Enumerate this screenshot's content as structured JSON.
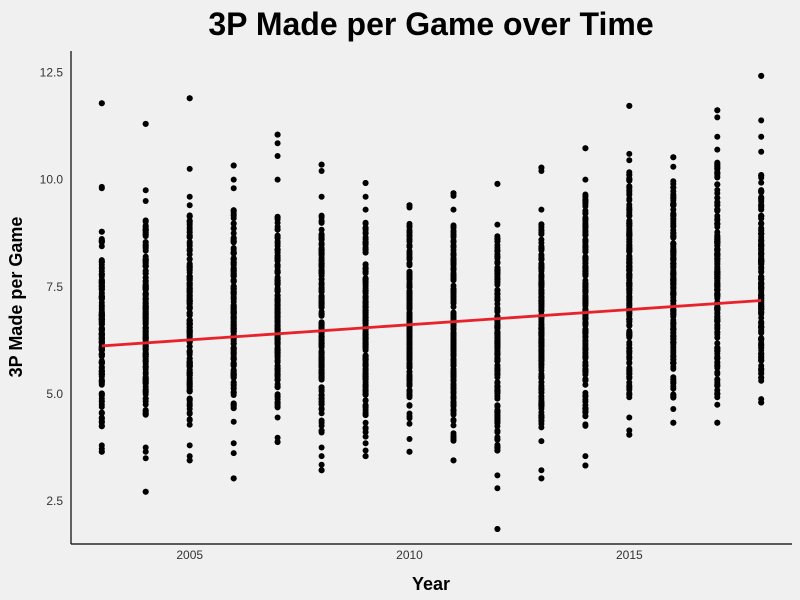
{
  "chart_data": {
    "type": "scatter",
    "title": "3P Made per Game over Time",
    "xlabel": "Year",
    "ylabel": "3P Made per Game",
    "xlim": [
      2002.3,
      2018.7
    ],
    "ylim": [
      1.5,
      13.0
    ],
    "x_ticks": [
      2005,
      2010,
      2015
    ],
    "y_ticks": [
      2.5,
      5.0,
      7.5,
      10.0,
      12.5
    ],
    "x_tick_labels": [
      "2005",
      "2010",
      "2015"
    ],
    "y_tick_labels": [
      "2.5",
      "5.0",
      "7.5",
      "10.0",
      "12.5"
    ],
    "grid": false,
    "colors": {
      "points": "#000000",
      "trend": "#e8222a",
      "background": "#f0f0f0"
    },
    "trend_line": {
      "x": [
        2003,
        2018
      ],
      "y": [
        6.12,
        7.18
      ]
    },
    "years": [
      {
        "x": 2003,
        "min": 3.65,
        "max": 11.78,
        "lo": 4.2,
        "hi": 8.8,
        "outliers": [
          3.65,
          3.72,
          3.8,
          9.8,
          9.83,
          11.78
        ]
      },
      {
        "x": 2004,
        "min": 2.72,
        "max": 11.3,
        "lo": 4.4,
        "hi": 9.1,
        "outliers": [
          2.72,
          3.5,
          3.65,
          3.75,
          9.5,
          9.75,
          11.3
        ]
      },
      {
        "x": 2005,
        "min": 3.45,
        "max": 11.9,
        "lo": 4.2,
        "hi": 9.2,
        "outliers": [
          3.45,
          3.55,
          3.8,
          9.4,
          9.6,
          10.25,
          11.9
        ]
      },
      {
        "x": 2006,
        "min": 3.03,
        "max": 10.33,
        "lo": 4.6,
        "hi": 9.4,
        "outliers": [
          3.03,
          3.62,
          3.85,
          4.35,
          9.8,
          10.0,
          10.33
        ]
      },
      {
        "x": 2007,
        "min": 3.88,
        "max": 11.05,
        "lo": 4.6,
        "hi": 9.2,
        "outliers": [
          3.88,
          3.98,
          4.45,
          10.0,
          10.55,
          10.85,
          11.05
        ]
      },
      {
        "x": 2008,
        "min": 3.22,
        "max": 10.35,
        "lo": 4.1,
        "hi": 9.2,
        "outliers": [
          3.22,
          3.35,
          3.55,
          3.75,
          9.6,
          10.2,
          10.35
        ]
      },
      {
        "x": 2009,
        "min": 3.55,
        "max": 9.92,
        "lo": 4.0,
        "hi": 9.0,
        "outliers": [
          3.55,
          3.68,
          3.85,
          9.3,
          9.6,
          9.92
        ]
      },
      {
        "x": 2010,
        "min": 3.65,
        "max": 9.4,
        "lo": 4.3,
        "hi": 9.0,
        "outliers": [
          3.65,
          3.95,
          9.35,
          9.4
        ]
      },
      {
        "x": 2011,
        "min": 3.45,
        "max": 9.68,
        "lo": 3.9,
        "hi": 9.0,
        "outliers": [
          3.45,
          9.3,
          9.62,
          9.68
        ]
      },
      {
        "x": 2012,
        "min": 1.85,
        "max": 9.9,
        "lo": 3.6,
        "hi": 8.7,
        "outliers": [
          1.85,
          2.8,
          3.1,
          8.95,
          9.9
        ]
      },
      {
        "x": 2013,
        "min": 3.03,
        "max": 10.28,
        "lo": 4.2,
        "hi": 9.0,
        "outliers": [
          3.03,
          3.22,
          3.9,
          9.3,
          10.2,
          10.28
        ]
      },
      {
        "x": 2014,
        "min": 3.33,
        "max": 10.73,
        "lo": 4.2,
        "hi": 9.8,
        "outliers": [
          3.33,
          3.55,
          10.0,
          10.73
        ]
      },
      {
        "x": 2015,
        "min": 4.05,
        "max": 11.72,
        "lo": 4.9,
        "hi": 10.2,
        "outliers": [
          4.05,
          4.15,
          4.45,
          10.45,
          10.6,
          11.72
        ]
      },
      {
        "x": 2016,
        "min": 4.33,
        "max": 10.52,
        "lo": 4.9,
        "hi": 10.0,
        "outliers": [
          4.33,
          4.65,
          10.3,
          10.52
        ]
      },
      {
        "x": 2017,
        "min": 4.33,
        "max": 11.62,
        "lo": 4.9,
        "hi": 10.4,
        "outliers": [
          4.33,
          4.75,
          10.7,
          11.0,
          11.45,
          11.62
        ]
      },
      {
        "x": 2018,
        "min": 4.8,
        "max": 12.42,
        "lo": 5.3,
        "hi": 10.2,
        "outliers": [
          4.8,
          4.88,
          10.65,
          11.0,
          11.38,
          12.42
        ]
      }
    ]
  }
}
